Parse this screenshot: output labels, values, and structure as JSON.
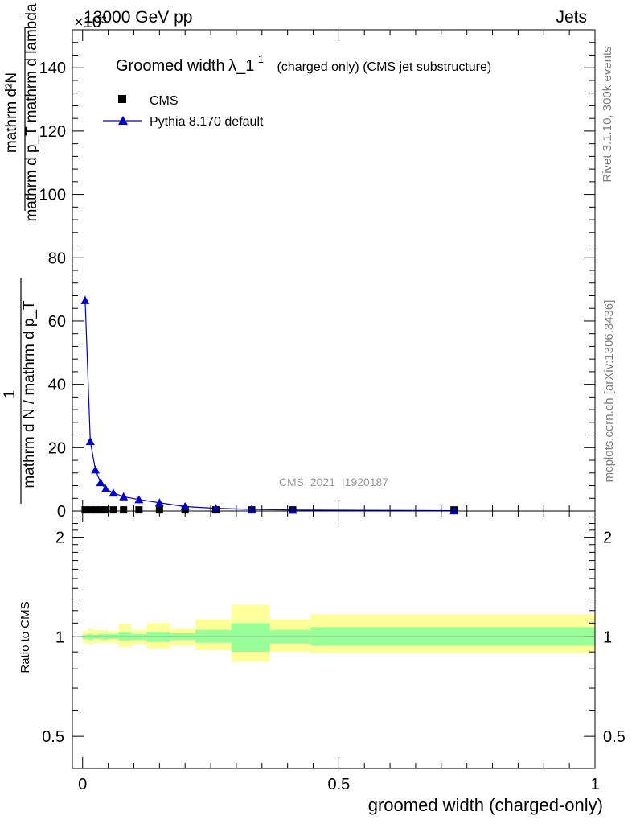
{
  "header": {
    "energy_label": "13000 GeV pp",
    "exponent_label": "×10³",
    "process_label": "Jets"
  },
  "side_labels": {
    "rivet": "Rivet 3.1.10,  300k events",
    "mcplots": "mcplots.cern.ch [arXiv:1306.3436]"
  },
  "watermark": "CMS_2021_I1920187",
  "chart_data": [
    {
      "type": "line",
      "title": "Groomed width λ_1¹ (charged only) (CMS jet substructure)",
      "title_main": "Groomed width",
      "title_lambda": "λ_1",
      "title_sup": "1",
      "title_sub": "(charged only) (CMS jet substructure)",
      "ylabel_numerator": "mathrm d²N",
      "ylabel_denominator": "mathrm d p_T mathrm d lambda",
      "ylabel_prefactor": "1",
      "ylabel_prefactor_denominator": "mathrm d N / mathrm d p_T",
      "ylim": [
        0,
        152
      ],
      "y_unit_multiplier": 1000,
      "xlim": [
        -0.02,
        1.0
      ],
      "yticks": [
        0,
        20,
        40,
        60,
        80,
        100,
        120,
        140
      ],
      "ytick_labels": [
        "0",
        "20",
        "40",
        "60",
        "80",
        "100",
        "120",
        "140"
      ],
      "legend_position": "top-left",
      "series": [
        {
          "name": "CMS",
          "marker": "square",
          "color": "#000000",
          "x": [
            0.005,
            0.015,
            0.025,
            0.035,
            0.045,
            0.06,
            0.08,
            0.11,
            0.15,
            0.2,
            0.26,
            0.33,
            0.41,
            0.725
          ],
          "values": [
            0.35,
            0.35,
            0.35,
            0.35,
            0.35,
            0.35,
            0.35,
            0.35,
            0.35,
            0.35,
            0.35,
            0.35,
            0.35,
            0.35
          ]
        },
        {
          "name": "Pythia 8.170 default",
          "marker": "triangle",
          "color": "#0000cc",
          "x": [
            0.005,
            0.015,
            0.025,
            0.035,
            0.045,
            0.06,
            0.08,
            0.11,
            0.15,
            0.2,
            0.26,
            0.33,
            0.41,
            0.725
          ],
          "values": [
            66.5,
            22,
            13,
            9,
            7,
            5.7,
            4.5,
            3.6,
            2.6,
            1.4,
            0.85,
            0.5,
            0.3,
            0.1
          ],
          "errors": [
            1.5,
            0.5,
            0.4,
            0.3,
            0.2,
            0.2,
            0.15,
            0.1,
            0.1,
            0.1,
            0.05,
            0.05,
            0.05,
            0.03
          ]
        }
      ]
    },
    {
      "type": "area",
      "ylabel": "Ratio to CMS",
      "xlabel": "groomed width (charged-only)",
      "ylim": [
        0.4,
        2.4
      ],
      "y_scale": "log",
      "xlim": [
        -0.02,
        1.0
      ],
      "yticks": [
        0.5,
        1,
        2
      ],
      "ytick_labels": [
        "0.5",
        "1",
        "2"
      ],
      "xticks": [
        0,
        0.5,
        1
      ],
      "xtick_labels": [
        "0",
        "0.5",
        "1"
      ],
      "reference_line": 1,
      "bands": {
        "inner_color": "#99ff99",
        "outer_color": "#ffff99",
        "bins": [
          {
            "x0": 0.0,
            "x1": 0.01,
            "inner": [
              0.985,
              1.015
            ],
            "outer": [
              0.96,
              1.04
            ]
          },
          {
            "x0": 0.01,
            "x1": 0.02,
            "inner": [
              0.98,
              1.02
            ],
            "outer": [
              0.95,
              1.06
            ]
          },
          {
            "x0": 0.02,
            "x1": 0.03,
            "inner": [
              0.985,
              1.015
            ],
            "outer": [
              0.96,
              1.05
            ]
          },
          {
            "x0": 0.03,
            "x1": 0.04,
            "inner": [
              0.985,
              1.02
            ],
            "outer": [
              0.96,
              1.05
            ]
          },
          {
            "x0": 0.04,
            "x1": 0.05,
            "inner": [
              0.98,
              1.02
            ],
            "outer": [
              0.96,
              1.05
            ]
          },
          {
            "x0": 0.05,
            "x1": 0.07,
            "inner": [
              0.985,
              1.02
            ],
            "outer": [
              0.96,
              1.04
            ]
          },
          {
            "x0": 0.07,
            "x1": 0.095,
            "inner": [
              0.975,
              1.03
            ],
            "outer": [
              0.93,
              1.09
            ]
          },
          {
            "x0": 0.095,
            "x1": 0.125,
            "inner": [
              0.98,
              1.02
            ],
            "outer": [
              0.95,
              1.05
            ]
          },
          {
            "x0": 0.125,
            "x1": 0.17,
            "inner": [
              0.965,
              1.035
            ],
            "outer": [
              0.92,
              1.1
            ]
          },
          {
            "x0": 0.17,
            "x1": 0.22,
            "inner": [
              0.98,
              1.025
            ],
            "outer": [
              0.94,
              1.06
            ]
          },
          {
            "x0": 0.22,
            "x1": 0.29,
            "inner": [
              0.96,
              1.05
            ],
            "outer": [
              0.91,
              1.13
            ]
          },
          {
            "x0": 0.29,
            "x1": 0.365,
            "inner": [
              0.9,
              1.1
            ],
            "outer": [
              0.84,
              1.25
            ]
          },
          {
            "x0": 0.365,
            "x1": 0.445,
            "inner": [
              0.955,
              1.05
            ],
            "outer": [
              0.9,
              1.13
            ]
          },
          {
            "x0": 0.445,
            "x1": 1.0,
            "inner": [
              0.94,
              1.07
            ],
            "outer": [
              0.89,
              1.17
            ]
          }
        ]
      }
    }
  ],
  "colors": {
    "data": "#000000",
    "mc": "#0000cc",
    "side_text": "#808080",
    "watermark": "#999999"
  }
}
